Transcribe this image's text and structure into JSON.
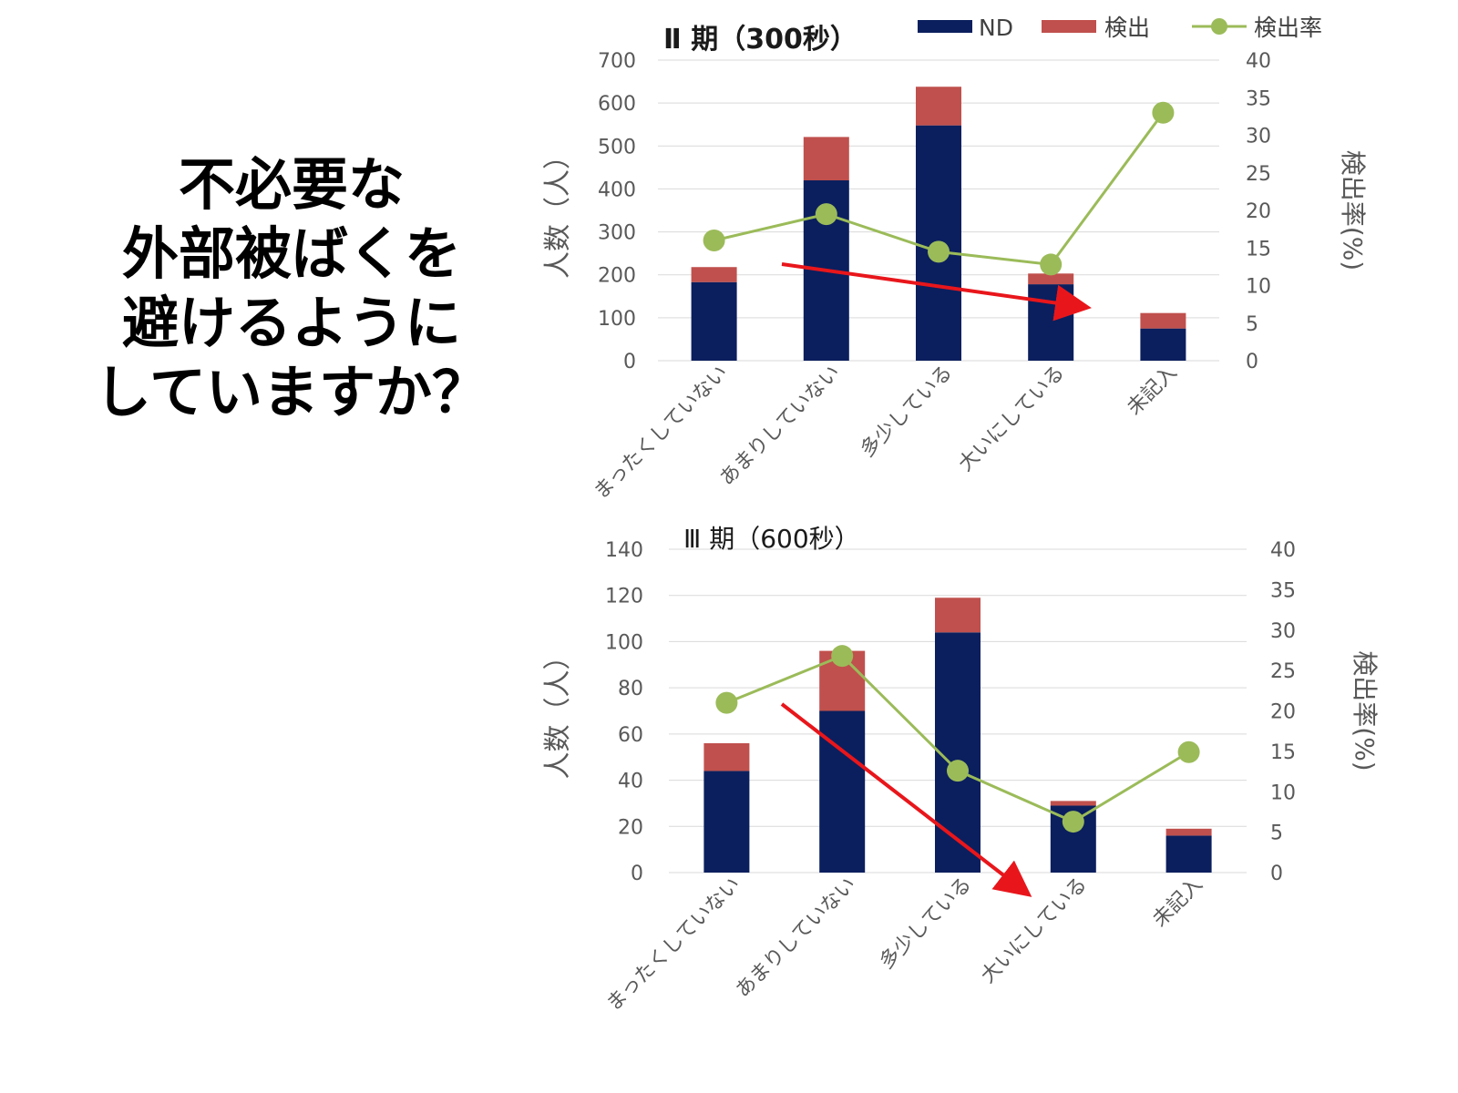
{
  "question": {
    "lines": [
      "不必要な",
      "外部被ばくを",
      "避けるように",
      "していますか？"
    ]
  },
  "legend": {
    "items": [
      {
        "label": "ND",
        "color": "#0b1f5e",
        "kind": "bar"
      },
      {
        "label": "検出",
        "color": "#c0504d",
        "kind": "bar"
      },
      {
        "label": "検出率",
        "color": "#9bbb59",
        "kind": "line"
      }
    ]
  },
  "chart_data": [
    {
      "type": "bar",
      "stacked": true,
      "title": "Ⅱ 期（300秒）",
      "categories": [
        "まったくしていない",
        "あまりしていない",
        "多少している",
        "大いにしている",
        "未記入"
      ],
      "series": [
        {
          "name": "ND",
          "values": [
            183,
            420,
            548,
            178,
            75
          ],
          "color": "#0b1f5e",
          "axis": "left"
        },
        {
          "name": "検出",
          "values": [
            35,
            101,
            90,
            25,
            36
          ],
          "color": "#c0504d",
          "axis": "left"
        }
      ],
      "line_series": {
        "name": "検出率",
        "values": [
          16,
          19.5,
          14.5,
          12.8,
          33
        ],
        "color": "#9bbb59",
        "axis": "right"
      },
      "ylabel": "人数（人）",
      "y2label": "検出率(%)",
      "ylim": [
        0,
        700
      ],
      "yticks": [
        0,
        100,
        200,
        300,
        400,
        500,
        600,
        700
      ],
      "y2lim": [
        0,
        40
      ],
      "y2ticks": [
        0,
        5,
        10,
        15,
        20,
        25,
        30,
        35,
        40
      ],
      "grid": true,
      "legend": "top-right",
      "annotation": {
        "type": "arrow",
        "color": "#e8161b",
        "description": "downward trend arrow"
      }
    },
    {
      "type": "bar",
      "stacked": true,
      "title": "Ⅲ 期（600秒）",
      "categories": [
        "まったくしていない",
        "あまりしていない",
        "多少している",
        "大いにしている",
        "未記入"
      ],
      "series": [
        {
          "name": "ND",
          "values": [
            44,
            70,
            104,
            29,
            16
          ],
          "color": "#0b1f5e",
          "axis": "left"
        },
        {
          "name": "検出",
          "values": [
            12,
            26,
            15,
            2,
            3
          ],
          "color": "#c0504d",
          "axis": "left"
        }
      ],
      "line_series": {
        "name": "検出率",
        "values": [
          21,
          26.8,
          12.6,
          6.3,
          14.9
        ],
        "color": "#9bbb59",
        "axis": "right"
      },
      "ylabel": "人数（人）",
      "y2label": "検出率(%)",
      "ylim": [
        0,
        140
      ],
      "yticks": [
        0,
        20,
        40,
        60,
        80,
        100,
        120,
        140
      ],
      "y2lim": [
        0,
        40
      ],
      "y2ticks": [
        0,
        5,
        10,
        15,
        20,
        25,
        30,
        35,
        40
      ],
      "grid": true,
      "annotation": {
        "type": "arrow",
        "color": "#e8161b",
        "description": "downward trend arrow"
      }
    }
  ]
}
